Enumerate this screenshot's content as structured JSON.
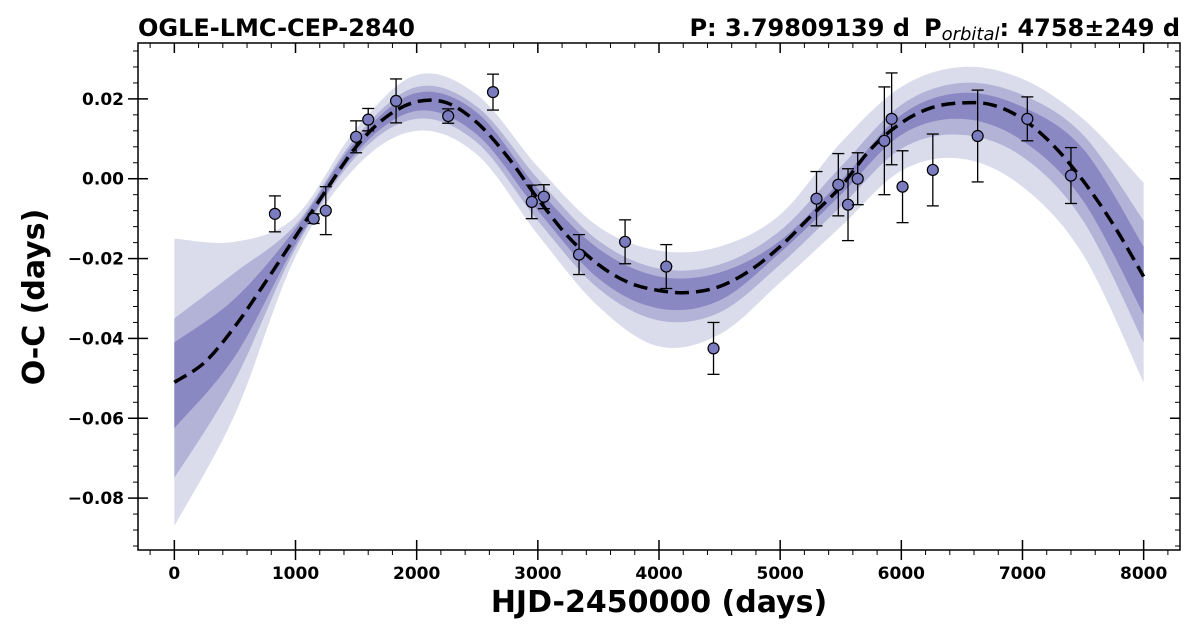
{
  "chart_data": {
    "type": "scatter",
    "title_left": "OGLE-LMC-CEP-2840",
    "title_right": {
      "period_label": "P: ",
      "period_value": "3.79809139 d",
      "orbital_prefix": "P",
      "orbital_subscript": "orbital",
      "orbital_value": ": 4758±249 d"
    },
    "xlabel": "HJD-2450000 (days)",
    "ylabel": "O-C (days)",
    "xlim": [
      -300,
      8300
    ],
    "ylim": [
      -0.093,
      0.034
    ],
    "x_ticks": [
      0,
      1000,
      2000,
      3000,
      4000,
      5000,
      6000,
      7000,
      8000
    ],
    "x_tick_labels": [
      "0",
      "1000",
      "2000",
      "3000",
      "4000",
      "5000",
      "6000",
      "7000",
      "8000"
    ],
    "y_ticks": [
      -0.08,
      -0.06,
      -0.04,
      -0.02,
      0.0,
      0.02
    ],
    "y_tick_labels": [
      "−0.08",
      "−0.06",
      "−0.04",
      "−0.02",
      "0.00",
      "0.02"
    ],
    "grid": false,
    "colors": {
      "band_outer": "#dadcec",
      "band_middle": "#b2b3d6",
      "band_inner": "#8a88c3",
      "point_fill": "#7b7bbf",
      "model_line": "#000000"
    },
    "model": {
      "style": "dashed",
      "x": [
        0,
        250,
        500,
        750,
        1000,
        1250,
        1500,
        1750,
        2000,
        2250,
        2500,
        2750,
        3000,
        3250,
        3500,
        3750,
        4000,
        4250,
        4500,
        4750,
        5000,
        5250,
        5500,
        5750,
        6000,
        6250,
        6500,
        6750,
        7000,
        7250,
        7500,
        7750,
        8000
      ],
      "y": [
        -0.051,
        -0.046,
        -0.037,
        -0.026,
        -0.0145,
        -0.003,
        0.008,
        0.0155,
        0.0193,
        0.019,
        0.014,
        0.0055,
        -0.005,
        -0.0145,
        -0.0215,
        -0.026,
        -0.028,
        -0.0285,
        -0.027,
        -0.023,
        -0.017,
        -0.0095,
        -0.002,
        0.0075,
        0.014,
        0.0178,
        0.019,
        0.0185,
        0.015,
        0.0085,
        -0.0005,
        -0.0115,
        -0.0245
      ]
    },
    "bands": [
      {
        "name": "outer",
        "x": [
          0,
          500,
          1000,
          1500,
          2000,
          2500,
          3000,
          3500,
          4000,
          4500,
          5000,
          5500,
          6000,
          6500,
          7000,
          7500,
          8000
        ],
        "upper": [
          -0.015,
          -0.0158,
          -0.0095,
          0.0125,
          0.026,
          0.021,
          0.003,
          -0.012,
          -0.018,
          -0.017,
          -0.009,
          0.009,
          0.023,
          0.028,
          0.025,
          0.015,
          -0.001
        ],
        "lower": [
          -0.087,
          -0.059,
          -0.0195,
          0.003,
          0.012,
          0.006,
          -0.014,
          -0.032,
          -0.042,
          -0.039,
          -0.026,
          -0.012,
          0.002,
          0.005,
          -0.002,
          -0.019,
          -0.051
        ]
      },
      {
        "name": "middle",
        "x": [
          0,
          500,
          1000,
          1500,
          2000,
          2500,
          3000,
          3500,
          4000,
          4500,
          5000,
          5500,
          6000,
          6500,
          7000,
          7500,
          8000
        ],
        "upper": [
          -0.035,
          -0.0235,
          -0.0115,
          0.0105,
          0.023,
          0.018,
          0.0,
          -0.0155,
          -0.0225,
          -0.0215,
          -0.013,
          0.003,
          0.0185,
          0.024,
          0.021,
          0.011,
          -0.0105
        ],
        "lower": [
          -0.075,
          -0.0505,
          -0.0175,
          0.0055,
          0.015,
          0.009,
          -0.0105,
          -0.0275,
          -0.0355,
          -0.0335,
          -0.0215,
          -0.007,
          0.0075,
          0.011,
          0.0055,
          -0.0105,
          -0.041
        ]
      },
      {
        "name": "inner",
        "x": [
          0,
          500,
          1000,
          1500,
          2000,
          2500,
          3000,
          3500,
          4000,
          4500,
          5000,
          5500,
          6000,
          6500,
          7000,
          7500,
          8000
        ],
        "upper": [
          -0.041,
          -0.03,
          -0.0125,
          0.0095,
          0.0215,
          0.0165,
          -0.0025,
          -0.0175,
          -0.0245,
          -0.0235,
          -0.0155,
          -0.0005,
          0.016,
          0.0215,
          0.018,
          0.0075,
          -0.017
        ],
        "lower": [
          -0.0625,
          -0.0445,
          -0.0165,
          0.0065,
          0.017,
          0.011,
          -0.008,
          -0.025,
          -0.0325,
          -0.0305,
          -0.0185,
          -0.004,
          0.011,
          0.015,
          0.0095,
          -0.0055,
          -0.034
        ]
      }
    ],
    "points": [
      {
        "x": 830,
        "y": -0.0088,
        "err": 0.0045
      },
      {
        "x": 1150,
        "y": -0.01,
        "err": 0.0012
      },
      {
        "x": 1250,
        "y": -0.008,
        "err": 0.006
      },
      {
        "x": 1500,
        "y": 0.0105,
        "err": 0.004
      },
      {
        "x": 1600,
        "y": 0.0148,
        "err": 0.0028
      },
      {
        "x": 1830,
        "y": 0.0195,
        "err": 0.0055
      },
      {
        "x": 2260,
        "y": 0.0157,
        "err": 0.0018
      },
      {
        "x": 2630,
        "y": 0.0217,
        "err": 0.0045
      },
      {
        "x": 2950,
        "y": -0.0058,
        "err": 0.0042
      },
      {
        "x": 3050,
        "y": -0.0045,
        "err": 0.003
      },
      {
        "x": 3340,
        "y": -0.019,
        "err": 0.005
      },
      {
        "x": 3720,
        "y": -0.0158,
        "err": 0.0055
      },
      {
        "x": 4060,
        "y": -0.022,
        "err": 0.0055
      },
      {
        "x": 4450,
        "y": -0.0425,
        "err": 0.0065
      },
      {
        "x": 5300,
        "y": -0.005,
        "err": 0.0068
      },
      {
        "x": 5480,
        "y": -0.0015,
        "err": 0.0078
      },
      {
        "x": 5560,
        "y": -0.0065,
        "err": 0.009
      },
      {
        "x": 5640,
        "y": 0.0,
        "err": 0.0065
      },
      {
        "x": 5860,
        "y": 0.0095,
        "err": 0.0135
      },
      {
        "x": 5920,
        "y": 0.015,
        "err": 0.0115
      },
      {
        "x": 6010,
        "y": -0.002,
        "err": 0.009
      },
      {
        "x": 6260,
        "y": 0.0022,
        "err": 0.009
      },
      {
        "x": 6630,
        "y": 0.0107,
        "err": 0.0115
      },
      {
        "x": 7040,
        "y": 0.015,
        "err": 0.0055
      },
      {
        "x": 7400,
        "y": 0.0008,
        "err": 0.007
      }
    ]
  }
}
